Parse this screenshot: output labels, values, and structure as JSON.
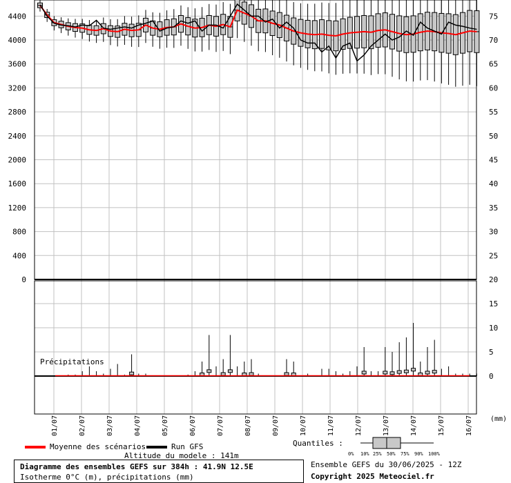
{
  "chart_data": {
    "type": "boxplot",
    "title": "Diagramme des ensembles GEFS sur 384h : 41.9N 12.5E",
    "subtitle": "Isotherme 0°C (m), précipitations (mm)",
    "top_panel": {
      "left_axis_ticks": [
        "0",
        "400",
        "800",
        "1200",
        "1600",
        "2000",
        "2400",
        "2800",
        "3200",
        "3600",
        "4000",
        "4400"
      ],
      "left_range": [
        0,
        4600
      ],
      "right_axis_ticks": [
        "25",
        "30",
        "35",
        "40",
        "45",
        "50",
        "55",
        "60",
        "65",
        "70",
        "75"
      ],
      "right_range": [
        20,
        77.5
      ],
      "series": [
        {
          "name": "Moyenne des scénarios",
          "color": "#ff0000",
          "values": [
            4580,
            4420,
            4290,
            4260,
            4230,
            4210,
            4200,
            4170,
            4160,
            4190,
            4150,
            4140,
            4180,
            4160,
            4170,
            4250,
            4200,
            4180,
            4210,
            4220,
            4270,
            4230,
            4200,
            4210,
            4250,
            4230,
            4260,
            4220,
            4500,
            4450,
            4400,
            4320,
            4320,
            4280,
            4250,
            4200,
            4150,
            4120,
            4100,
            4090,
            4100,
            4080,
            4070,
            4100,
            4120,
            4130,
            4140,
            4130,
            4160,
            4170,
            4140,
            4110,
            4090,
            4100,
            4130,
            4150,
            4140,
            4120,
            4110,
            4090,
            4120,
            4150,
            4140
          ]
        },
        {
          "name": "Run GFS",
          "color": "#000000",
          "values": [
            4590,
            4400,
            4280,
            4250,
            4240,
            4220,
            4250,
            4240,
            4330,
            4200,
            4180,
            4200,
            4220,
            4200,
            4250,
            4280,
            4320,
            4150,
            4200,
            4220,
            4320,
            4280,
            4320,
            4150,
            4250,
            4250,
            4200,
            4400,
            4600,
            4500,
            4400,
            4400,
            4300,
            4350,
            4200,
            4300,
            4200,
            4000,
            3950,
            3950,
            3800,
            3900,
            3700,
            3900,
            3950,
            3650,
            3750,
            3900,
            4000,
            4100,
            4000,
            4050,
            4150,
            4080,
            4300,
            4200,
            4150,
            4100,
            4300,
            4250,
            4230,
            4200,
            4180
          ]
        }
      ]
    },
    "bottom_panel": {
      "right_axis_ticks": [
        "0",
        "5",
        "10",
        "15",
        "20"
      ],
      "right_range": [
        -8,
        20
      ],
      "label": "Précipitations",
      "unit": "(mm)",
      "max_values": [
        0.1,
        0,
        0.1,
        0.2,
        0.3,
        0.3,
        1,
        2,
        1,
        0.5,
        1.5,
        2.5,
        0.3,
        4.5,
        0.5,
        0.5,
        0.2,
        0,
        0,
        0,
        0,
        0.3,
        1,
        3,
        8.5,
        2,
        3.5,
        8.5,
        2,
        3,
        3.5,
        0.5,
        0.2,
        0,
        0,
        3.5,
        3,
        0.2,
        0.5,
        0.2,
        1.5,
        1.5,
        1,
        0.5,
        1,
        2,
        6,
        1,
        1,
        6,
        5,
        7,
        8,
        11,
        3,
        6,
        7.5,
        1.5,
        2,
        0.5,
        0.5,
        0.5,
        0.5
      ]
    },
    "x_labels": [
      "01/07",
      "02/07",
      "03/07",
      "04/07",
      "05/07",
      "06/07",
      "07/07",
      "08/07",
      "09/07",
      "10/07",
      "11/07",
      "12/07",
      "13/07",
      "14/07",
      "15/07",
      "16/07"
    ],
    "quantiles_label": "Quantiles :",
    "quantile_marks": [
      "0%",
      "10%",
      "25%",
      "50%",
      "75%",
      "90%",
      "100%"
    ]
  },
  "legend": {
    "mean_label": "Moyenne des scénarios",
    "run_label": "Run GFS",
    "model_altitude": "Altitude du modele : 141m"
  },
  "footer": {
    "ensemble": "Ensemble GEFS du 30/06/2025 - 12Z",
    "copyright": "Copyright 2025 Meteociel.fr"
  }
}
